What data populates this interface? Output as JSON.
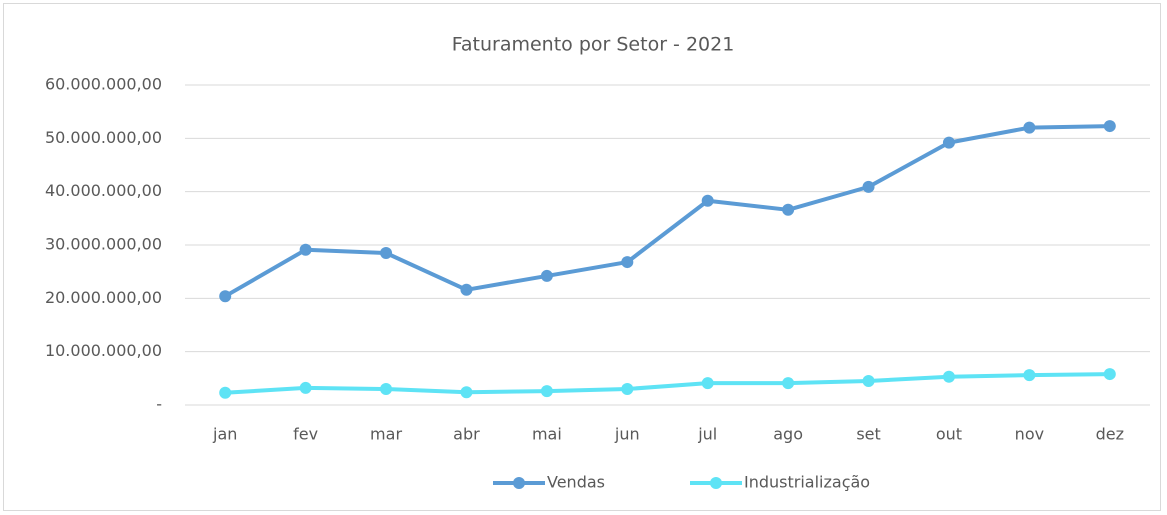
{
  "chart_data": {
    "type": "line",
    "title": "Faturamento por Setor - 2021",
    "categories": [
      "jan",
      "fev",
      "mar",
      "abr",
      "mai",
      "jun",
      "jul",
      "ago",
      "set",
      "out",
      "nov",
      "dez"
    ],
    "series": [
      {
        "name": "Vendas",
        "color": "#5b9bd5",
        "values": [
          20400000,
          29100000,
          28500000,
          21600000,
          24200000,
          26800000,
          38300000,
          36600000,
          40900000,
          49200000,
          52000000,
          52300000
        ]
      },
      {
        "name": "Industrialização",
        "color": "#5ee3f5",
        "values": [
          2300000,
          3200000,
          3000000,
          2400000,
          2600000,
          3000000,
          4100000,
          4100000,
          4500000,
          5300000,
          5600000,
          5800000
        ]
      }
    ],
    "ylim": [
      0,
      60000000
    ],
    "yticks": [
      {
        "value": 0,
        "label": "-"
      },
      {
        "value": 10000000,
        "label": "10.000.000,00"
      },
      {
        "value": 20000000,
        "label": "20.000.000,00"
      },
      {
        "value": 30000000,
        "label": "30.000.000,00"
      },
      {
        "value": 40000000,
        "label": "40.000.000,00"
      },
      {
        "value": 50000000,
        "label": "50.000.000,00"
      },
      {
        "value": 60000000,
        "label": "60.000.000,00"
      }
    ],
    "grid": true,
    "legend": "bottom"
  }
}
